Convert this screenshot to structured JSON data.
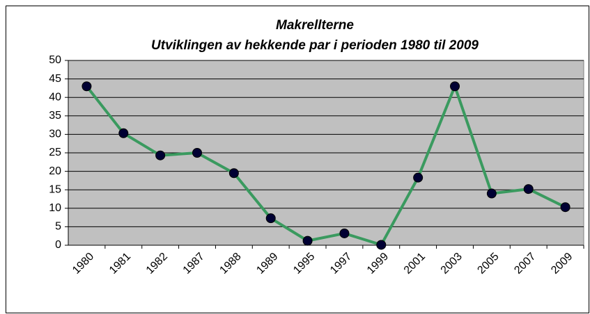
{
  "chart_data": {
    "type": "line",
    "title": "Makrellterne",
    "subtitle": "Utviklingen av hekkende par i perioden 1980 til 2009",
    "categories": [
      "1980",
      "1981",
      "1982",
      "1987",
      "1988",
      "1989",
      "1995",
      "1997",
      "1999",
      "2001",
      "2003",
      "2005",
      "2007",
      "2009"
    ],
    "series": [
      {
        "name": "Makrellterne",
        "color": "#3a9a5f",
        "marker_color": "#000033",
        "values": [
          43,
          30.3,
          24.3,
          25,
          19.5,
          7.3,
          1.2,
          3.2,
          0.1,
          18.3,
          43,
          14,
          15.2,
          10.3
        ]
      }
    ],
    "ylim": [
      0,
      50
    ],
    "yticks": [
      0,
      5,
      10,
      15,
      20,
      25,
      30,
      35,
      40,
      45,
      50
    ],
    "grid": true
  }
}
